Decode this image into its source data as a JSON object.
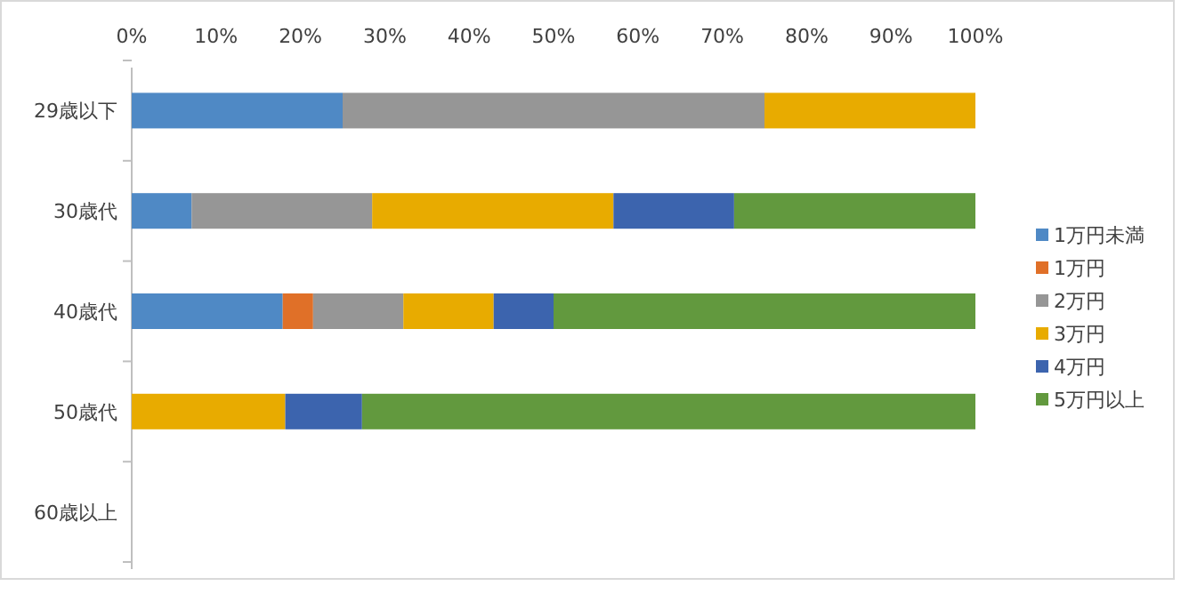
{
  "chart_data": {
    "type": "bar",
    "orientation": "horizontal",
    "stacked": true,
    "categories": [
      "29歳以下",
      "30歳代",
      "40歳代",
      "50歳代",
      "60歳以上"
    ],
    "series": [
      {
        "name": "1万円未満",
        "color": "#4f89c5",
        "values": [
          25,
          7.1,
          17.9,
          0,
          null
        ]
      },
      {
        "name": "1万円",
        "color": "#e07028",
        "values": [
          0,
          0,
          3.6,
          0,
          null
        ]
      },
      {
        "name": "2万円",
        "color": "#969696",
        "values": [
          50,
          21.4,
          10.7,
          0,
          null
        ]
      },
      {
        "name": "3万円",
        "color": "#e8ab00",
        "values": [
          25,
          28.6,
          10.7,
          18.2,
          null
        ]
      },
      {
        "name": "4万円",
        "color": "#3c64ae",
        "values": [
          0,
          14.3,
          7.1,
          9.1,
          null
        ]
      },
      {
        "name": "5万円以上",
        "color": "#62993e",
        "values": [
          0,
          28.6,
          50,
          72.7,
          null
        ]
      }
    ],
    "xlim": [
      0,
      100
    ],
    "xticks": [
      {
        "value": 0,
        "label": "0%"
      },
      {
        "value": 10,
        "label": "10%"
      },
      {
        "value": 20,
        "label": "20%"
      },
      {
        "value": 30,
        "label": "30%"
      },
      {
        "value": 40,
        "label": "40%"
      },
      {
        "value": 50,
        "label": "50%"
      },
      {
        "value": 60,
        "label": "60%"
      },
      {
        "value": 70,
        "label": "70%"
      },
      {
        "value": 80,
        "label": "80%"
      },
      {
        "value": 90,
        "label": "90%"
      },
      {
        "value": 100,
        "label": "100%"
      }
    ],
    "grid": false,
    "legend": "right"
  }
}
